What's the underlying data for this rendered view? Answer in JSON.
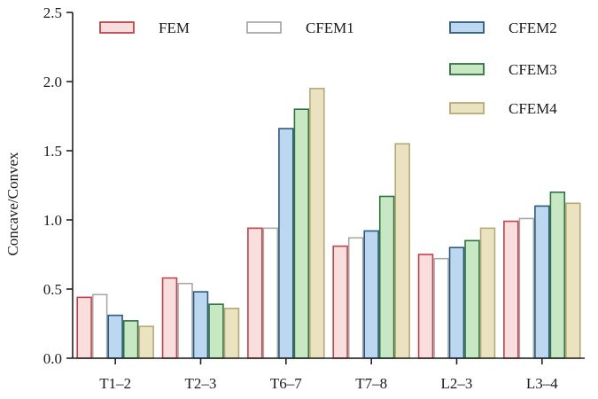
{
  "chart_data": {
    "type": "bar",
    "title": "",
    "xlabel": "",
    "ylabel": "Concave/Convex",
    "ylim": [
      0,
      2.5
    ],
    "yticks": [
      "0.0",
      "0.5",
      "1.0",
      "1.5",
      "2.0",
      "2.5"
    ],
    "categories": [
      "T1–2",
      "T2–3",
      "T6–7",
      "T7–8",
      "L2–3",
      "L3–4"
    ],
    "legend_position": "top",
    "series": [
      {
        "name": "FEM",
        "fill": "#f9dede",
        "stroke": "#c0424a",
        "values": [
          0.44,
          0.58,
          0.94,
          0.81,
          0.75,
          0.99
        ]
      },
      {
        "name": "CFEM1",
        "fill": "#ffffff",
        "stroke": "#a9a9a9",
        "values": [
          0.46,
          0.54,
          0.94,
          0.87,
          0.72,
          1.01
        ]
      },
      {
        "name": "CFEM2",
        "fill": "#bcd8f0",
        "stroke": "#2c5a7c",
        "values": [
          0.31,
          0.48,
          1.66,
          0.92,
          0.8,
          1.1
        ]
      },
      {
        "name": "CFEM3",
        "fill": "#c8e8c4",
        "stroke": "#2e7240",
        "values": [
          0.27,
          0.39,
          1.8,
          1.17,
          0.85,
          1.2
        ]
      },
      {
        "name": "CFEM4",
        "fill": "#ebe2bf",
        "stroke": "#b5aa78",
        "values": [
          0.23,
          0.36,
          1.95,
          1.55,
          0.94,
          1.12
        ]
      }
    ]
  }
}
